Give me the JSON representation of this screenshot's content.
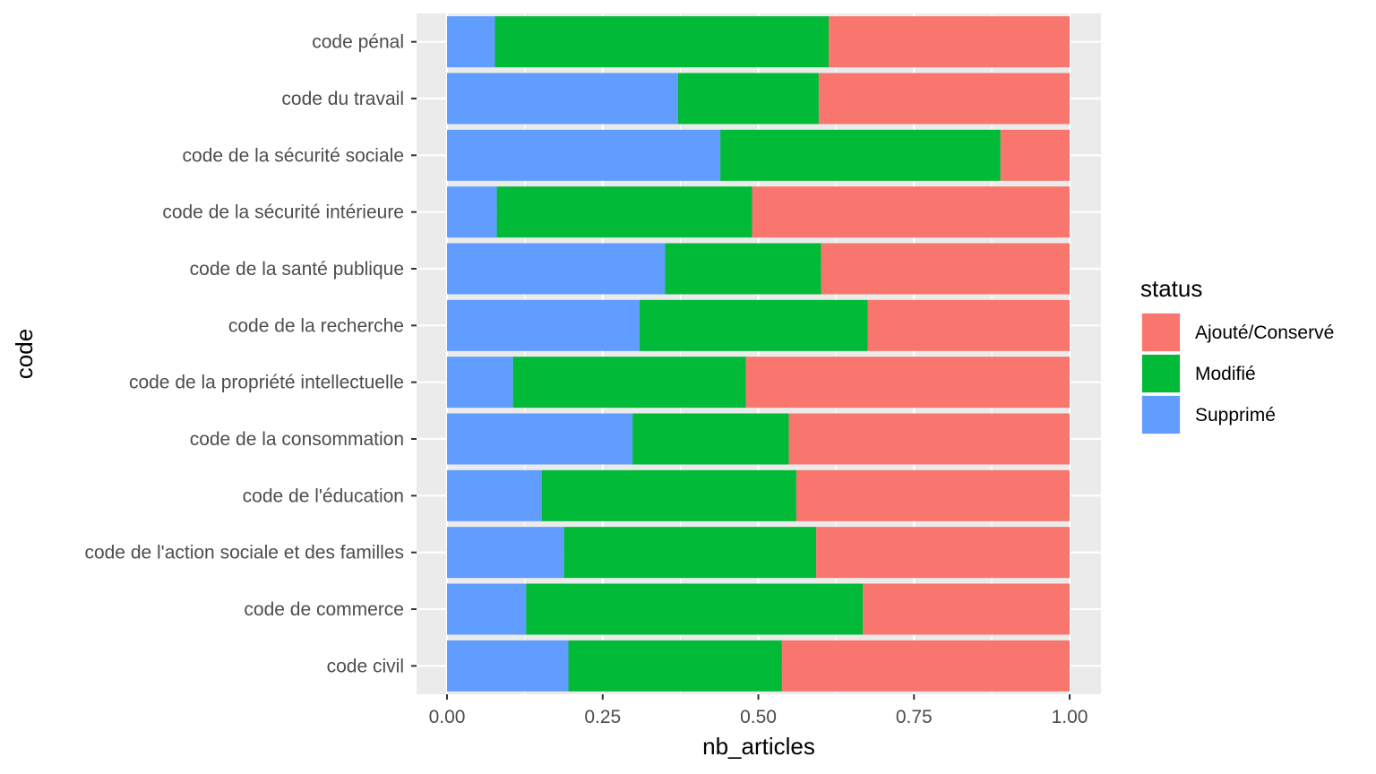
{
  "chart_data": {
    "type": "bar",
    "orientation": "horizontal",
    "stacked": true,
    "normalized": true,
    "xlabel": "nb_articles",
    "ylabel": "code",
    "xlim": [
      0,
      1
    ],
    "x_ticks": [
      "0.00",
      "0.25",
      "0.50",
      "0.75",
      "1.00"
    ],
    "grid": true,
    "legend_placement": "right",
    "legend_title": "status",
    "categories": [
      "code pénal",
      "code du travail",
      "code de la sécurité sociale",
      "code de la sécurité intérieure",
      "code de la santé publique",
      "code de la recherche",
      "code de la propriété intellectuelle",
      "code de la consommation",
      "code de l'éducation",
      "code de l'action sociale et des familles",
      "code de commerce",
      "code civil"
    ],
    "series": [
      {
        "name": "Supprimé",
        "color": "#619CFF",
        "values": [
          0.077,
          0.371,
          0.439,
          0.08,
          0.35,
          0.309,
          0.106,
          0.298,
          0.152,
          0.188,
          0.127,
          0.195
        ]
      },
      {
        "name": "Modifié",
        "color": "#00BA38",
        "values": [
          0.536,
          0.226,
          0.45,
          0.41,
          0.251,
          0.367,
          0.374,
          0.251,
          0.409,
          0.405,
          0.541,
          0.343
        ]
      },
      {
        "name": "Ajouté/Conservé",
        "color": "#F8766D",
        "values": [
          0.387,
          0.403,
          0.111,
          0.51,
          0.399,
          0.324,
          0.52,
          0.451,
          0.439,
          0.407,
          0.332,
          0.462
        ]
      }
    ],
    "legend_order": [
      "Ajouté/Conservé",
      "Modifié",
      "Supprimé"
    ],
    "panel_background": "#EBEBEB",
    "grid_color": "#FFFFFF"
  }
}
